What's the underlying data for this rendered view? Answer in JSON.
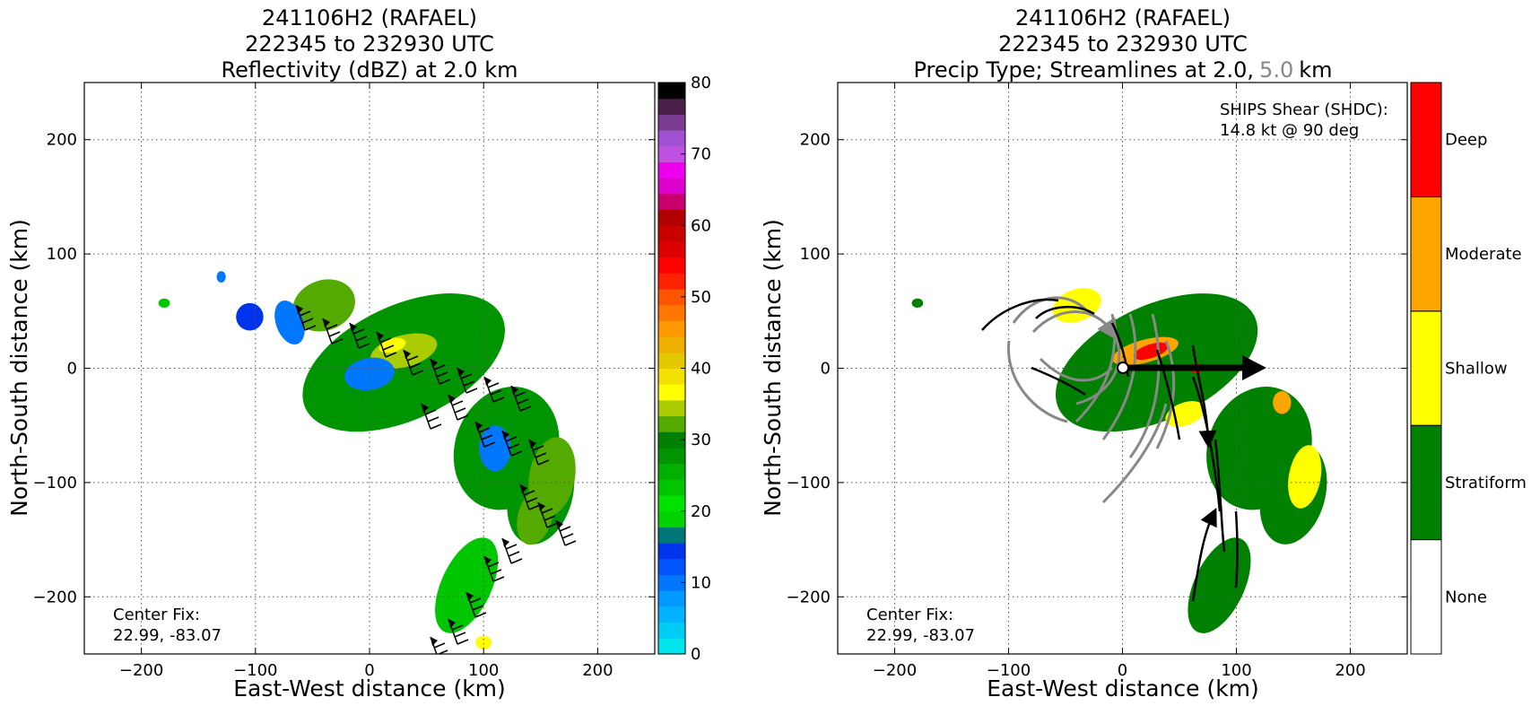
{
  "chart_data": [
    {
      "type": "heatmap",
      "title_lines": [
        "241106H2 (RAFAEL)",
        "222345 to 232930 UTC",
        "Reflectivity (dBZ) at 2.0 km"
      ],
      "xlabel": "East-West distance (km)",
      "ylabel": "North-South distance (km)",
      "xlim": [
        -250,
        250
      ],
      "ylim": [
        -250,
        250
      ],
      "xticks": [
        -200,
        -100,
        0,
        100,
        200
      ],
      "yticks": [
        -200,
        -100,
        0,
        100,
        200
      ],
      "grid": true,
      "annotation": {
        "label": "Center Fix:",
        "value": "22.99, -83.07"
      },
      "colorbar": {
        "min": 0,
        "max": 80,
        "step": 2.5,
        "ticks": [
          0,
          10,
          20,
          30,
          40,
          50,
          60,
          70,
          80
        ],
        "colors": [
          "#00e5ee",
          "#00cdf5",
          "#00b2ff",
          "#0099ff",
          "#0077ff",
          "#0055ff",
          "#0033ee",
          "#007777",
          "#00d300",
          "#00e300",
          "#00c600",
          "#00b000",
          "#009500",
          "#008000",
          "#55aa00",
          "#aacc00",
          "#ffff00",
          "#f2e000",
          "#e6c800",
          "#f0b000",
          "#ff9900",
          "#ff7700",
          "#ff5500",
          "#ff2200",
          "#ff0000",
          "#dd0000",
          "#c80000",
          "#b00000",
          "#c8006e",
          "#dd00cc",
          "#ee00ee",
          "#c050e0",
          "#a050d0",
          "#7a3c90",
          "#4a2048",
          "#000000"
        ]
      },
      "echo_regions_km": [
        {
          "dbz": 30,
          "x": 30,
          "y": 5,
          "rx": 95,
          "ry": 50,
          "rot": -25
        },
        {
          "dbz": 30,
          "x": 120,
          "y": -70,
          "rx": 45,
          "ry": 55,
          "rot": 20
        },
        {
          "dbz": 30,
          "x": 150,
          "y": -110,
          "rx": 28,
          "ry": 45,
          "rot": 15
        },
        {
          "dbz": 27,
          "x": 85,
          "y": -190,
          "rx": 22,
          "ry": 45,
          "rot": 25
        },
        {
          "dbz": 35,
          "x": -40,
          "y": 55,
          "rx": 28,
          "ry": 22,
          "rot": -20
        },
        {
          "dbz": 38,
          "x": 30,
          "y": 15,
          "rx": 30,
          "ry": 14,
          "rot": -15
        },
        {
          "dbz": 40,
          "x": 20,
          "y": 20,
          "rx": 12,
          "ry": 6,
          "rot": -15
        },
        {
          "dbz": 35,
          "x": 160,
          "y": -95,
          "rx": 20,
          "ry": 35,
          "rot": 10
        },
        {
          "dbz": 35,
          "x": 145,
          "y": -130,
          "rx": 15,
          "ry": 25,
          "rot": 15
        },
        {
          "dbz": 12,
          "x": 0,
          "y": -5,
          "rx": 22,
          "ry": 14,
          "rot": -10
        },
        {
          "dbz": 12,
          "x": 110,
          "y": -70,
          "rx": 14,
          "ry": 20,
          "rot": 0
        },
        {
          "dbz": 12,
          "x": -70,
          "y": 40,
          "rx": 12,
          "ry": 20,
          "rot": -20
        },
        {
          "dbz": 15,
          "x": -105,
          "y": 45,
          "rx": 12,
          "ry": 12,
          "rot": 0
        },
        {
          "dbz": 25,
          "x": -180,
          "y": 57,
          "rx": 5,
          "ry": 4,
          "rot": 0
        },
        {
          "dbz": 10,
          "x": -130,
          "y": 80,
          "rx": 4,
          "ry": 5,
          "rot": 0
        },
        {
          "dbz": 40,
          "x": 100,
          "y": -240,
          "rx": 7,
          "ry": 6,
          "rot": 0
        }
      ]
    },
    {
      "type": "heatmap",
      "title_lines": [
        "241106H2 (RAFAEL)",
        "222345 to 232930 UTC",
        "Precip Type; Streamlines at 2.0,",
        "5.0",
        "km"
      ],
      "xlabel": "East-West distance (km)",
      "ylabel": "North-South distance (km)",
      "xlim": [
        -250,
        250
      ],
      "ylim": [
        -250,
        250
      ],
      "xticks": [
        -200,
        -100,
        0,
        100,
        200
      ],
      "yticks": [
        -200,
        -100,
        0,
        100,
        200
      ],
      "grid": true,
      "annotation": {
        "label": "Center Fix:",
        "value": "22.99, -83.07"
      },
      "shear": {
        "label": "SHIPS Shear (SHDC):",
        "value": "14.8 kt @ 90 deg",
        "speed_kt": 14.8,
        "direction_deg": 90
      },
      "colorbar": {
        "categories": [
          "None",
          "Stratiform",
          "Shallow",
          "Moderate",
          "Deep"
        ],
        "colors": [
          "#ffffff",
          "#008000",
          "#ffff00",
          "#ffa500",
          "#ff0000"
        ]
      },
      "precip_regions_km": [
        {
          "cat": 1,
          "x": 30,
          "y": 5,
          "rx": 95,
          "ry": 50,
          "rot": -25
        },
        {
          "cat": 1,
          "x": 120,
          "y": -70,
          "rx": 45,
          "ry": 55,
          "rot": 20
        },
        {
          "cat": 1,
          "x": 150,
          "y": -110,
          "rx": 28,
          "ry": 45,
          "rot": 15
        },
        {
          "cat": 1,
          "x": 85,
          "y": -190,
          "rx": 22,
          "ry": 45,
          "rot": 25
        },
        {
          "cat": 1,
          "x": -180,
          "y": 57,
          "rx": 5,
          "ry": 4,
          "rot": 0
        },
        {
          "cat": 2,
          "x": -40,
          "y": 55,
          "rx": 22,
          "ry": 14,
          "rot": -20
        },
        {
          "cat": 2,
          "x": 160,
          "y": -95,
          "rx": 14,
          "ry": 28,
          "rot": 10
        },
        {
          "cat": 2,
          "x": 55,
          "y": -40,
          "rx": 18,
          "ry": 10,
          "rot": -20
        },
        {
          "cat": 3,
          "x": 20,
          "y": 15,
          "rx": 30,
          "ry": 10,
          "rot": -15
        },
        {
          "cat": 3,
          "x": 140,
          "y": -30,
          "rx": 8,
          "ry": 10,
          "rot": 0
        },
        {
          "cat": 4,
          "x": 25,
          "y": 15,
          "rx": 16,
          "ry": 6,
          "rot": -18
        },
        {
          "cat": 4,
          "x": 65,
          "y": 0,
          "rx": 6,
          "ry": 4,
          "rot": 0
        }
      ]
    }
  ]
}
